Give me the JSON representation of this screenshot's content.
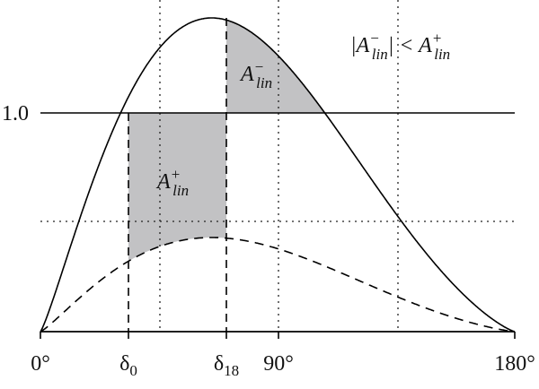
{
  "axis_labels": {
    "zero": "0°",
    "delta0": {
      "base": "δ",
      "sub": "0"
    },
    "delta18": {
      "base": "δ",
      "sub": "18"
    },
    "ninety": "90°",
    "one_eighty": "180°",
    "one": "1.0"
  },
  "annotation": {
    "open": "|A",
    "sub1": "lin",
    "sup1": "−",
    "mid": "| < A",
    "sub2": "lin",
    "sup2": "+"
  },
  "region_minus": {
    "base": "A",
    "sub": "lin",
    "sup": "−"
  },
  "region_plus": {
    "base": "A",
    "sub": "lin",
    "sup": "+"
  }
}
